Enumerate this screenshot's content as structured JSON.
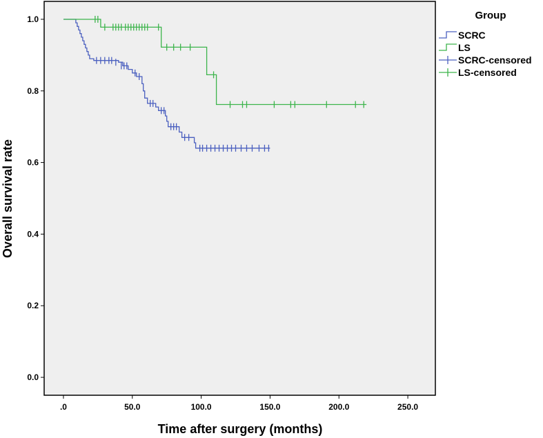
{
  "chart_data": {
    "type": "line",
    "subtype": "kaplan-meier",
    "title": "",
    "xlabel": "Time after surgery (months)",
    "ylabel": "Overall survival rate",
    "xlim": [
      -14,
      270
    ],
    "ylim": [
      -0.05,
      1.05
    ],
    "x_ticks": [
      0,
      50,
      100,
      150,
      200,
      250
    ],
    "x_tick_labels": [
      ".0",
      "50.0",
      "100.0",
      "150.0",
      "200.0",
      "250.0"
    ],
    "y_ticks": [
      0,
      0.2,
      0.4,
      0.6,
      0.8,
      1.0
    ],
    "y_tick_labels": [
      "0.0",
      "0.2",
      "0.4",
      "0.6",
      "0.8",
      "1.0"
    ],
    "legend_title": "Group",
    "legend_position": "top-right outside",
    "series": [
      {
        "name": "SCRC",
        "color": "#4a5fbf",
        "steps": [
          [
            0,
            1.0
          ],
          [
            8,
            1.0
          ],
          [
            9,
            0.99
          ],
          [
            10,
            0.98
          ],
          [
            11,
            0.97
          ],
          [
            12,
            0.96
          ],
          [
            13,
            0.95
          ],
          [
            14,
            0.94
          ],
          [
            15,
            0.93
          ],
          [
            16,
            0.92
          ],
          [
            17,
            0.91
          ],
          [
            18,
            0.9
          ],
          [
            19,
            0.89
          ],
          [
            22,
            0.885
          ],
          [
            40,
            0.88
          ],
          [
            43,
            0.87
          ],
          [
            47,
            0.86
          ],
          [
            50,
            0.85
          ],
          [
            53,
            0.84
          ],
          [
            57,
            0.82
          ],
          [
            58,
            0.8
          ],
          [
            59,
            0.78
          ],
          [
            61,
            0.765
          ],
          [
            67,
            0.755
          ],
          [
            69,
            0.745
          ],
          [
            74,
            0.73
          ],
          [
            75,
            0.715
          ],
          [
            76,
            0.7
          ],
          [
            84,
            0.685
          ],
          [
            86,
            0.67
          ],
          [
            95,
            0.655
          ],
          [
            96,
            0.64
          ],
          [
            150,
            0.64
          ]
        ],
        "censored": [
          [
            24,
            0.885
          ],
          [
            27,
            0.885
          ],
          [
            30,
            0.885
          ],
          [
            33,
            0.885
          ],
          [
            35,
            0.885
          ],
          [
            38,
            0.88
          ],
          [
            42,
            0.87
          ],
          [
            44,
            0.87
          ],
          [
            46,
            0.87
          ],
          [
            52,
            0.85
          ],
          [
            55,
            0.84
          ],
          [
            63,
            0.765
          ],
          [
            65,
            0.765
          ],
          [
            71,
            0.745
          ],
          [
            73,
            0.745
          ],
          [
            78,
            0.7
          ],
          [
            80,
            0.7
          ],
          [
            82,
            0.7
          ],
          [
            88,
            0.67
          ],
          [
            91,
            0.67
          ],
          [
            99,
            0.64
          ],
          [
            101,
            0.64
          ],
          [
            104,
            0.64
          ],
          [
            107,
            0.64
          ],
          [
            110,
            0.64
          ],
          [
            113,
            0.64
          ],
          [
            116,
            0.64
          ],
          [
            119,
            0.64
          ],
          [
            122,
            0.64
          ],
          [
            125,
            0.64
          ],
          [
            129,
            0.64
          ],
          [
            133,
            0.64
          ],
          [
            137,
            0.64
          ],
          [
            142,
            0.64
          ],
          [
            146,
            0.64
          ],
          [
            149,
            0.64
          ]
        ]
      },
      {
        "name": "LS",
        "color": "#3cb44b",
        "steps": [
          [
            0,
            1.0
          ],
          [
            26,
            1.0
          ],
          [
            27,
            0.978
          ],
          [
            70,
            0.978
          ],
          [
            71,
            0.922
          ],
          [
            103,
            0.922
          ],
          [
            104,
            0.845
          ],
          [
            110,
            0.845
          ],
          [
            111,
            0.762
          ],
          [
            220,
            0.762
          ]
        ],
        "censored": [
          [
            23,
            1.0
          ],
          [
            25,
            1.0
          ],
          [
            30,
            0.978
          ],
          [
            36,
            0.978
          ],
          [
            38,
            0.978
          ],
          [
            40,
            0.978
          ],
          [
            42,
            0.978
          ],
          [
            45,
            0.978
          ],
          [
            47,
            0.978
          ],
          [
            49,
            0.978
          ],
          [
            51,
            0.978
          ],
          [
            53,
            0.978
          ],
          [
            55,
            0.978
          ],
          [
            57,
            0.978
          ],
          [
            59,
            0.978
          ],
          [
            61,
            0.978
          ],
          [
            69,
            0.978
          ],
          [
            75,
            0.922
          ],
          [
            80,
            0.922
          ],
          [
            85,
            0.922
          ],
          [
            92,
            0.922
          ],
          [
            109,
            0.845
          ],
          [
            121,
            0.762
          ],
          [
            130,
            0.762
          ],
          [
            133,
            0.762
          ],
          [
            153,
            0.762
          ],
          [
            165,
            0.762
          ],
          [
            168,
            0.762
          ],
          [
            191,
            0.762
          ],
          [
            212,
            0.762
          ],
          [
            218,
            0.762
          ]
        ]
      }
    ],
    "legend_entries": [
      {
        "label": "SCRC",
        "color": "#4a5fbf",
        "marker": "step"
      },
      {
        "label": "LS",
        "color": "#3cb44b",
        "marker": "step"
      },
      {
        "label": "SCRC-censored",
        "color": "#4a5fbf",
        "marker": "plus"
      },
      {
        "label": "LS-censored",
        "color": "#3cb44b",
        "marker": "plus"
      }
    ]
  }
}
